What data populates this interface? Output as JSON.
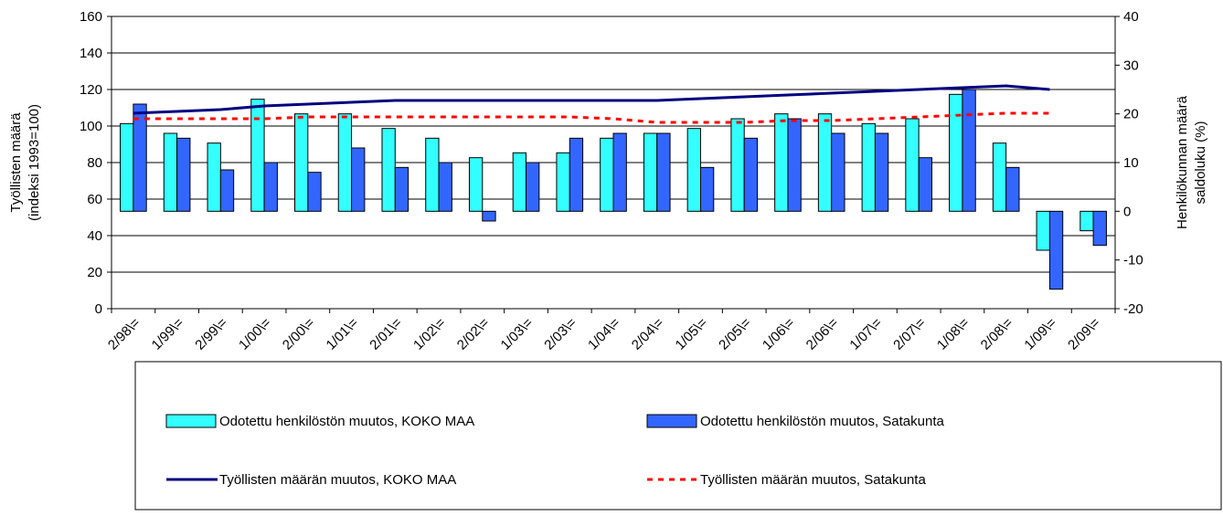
{
  "chart_data": {
    "type": "bar-line",
    "categories": [
      "2/98\\=",
      "1/99\\=",
      "2/99\\=",
      "1/00\\=",
      "2/00\\=",
      "1/01\\=",
      "2/01\\=",
      "1/02\\=",
      "2/02\\=",
      "1/03\\=",
      "2/03\\=",
      "1/04\\=",
      "2/04\\=",
      "1/05\\=",
      "2/05\\=",
      "1/06\\=",
      "2/06\\=",
      "1/07\\=",
      "2/07\\=",
      "1/08\\=",
      "2/08\\=",
      "1/09\\=",
      "2/09\\="
    ],
    "ylabel": [
      "Työllisten määrä",
      "(indeksi 1993=100)"
    ],
    "y2label": [
      "Henkilökunnan määrä",
      "saldoluku (%)"
    ],
    "ylim": [
      0,
      160
    ],
    "yticks": [
      0,
      20,
      40,
      60,
      80,
      100,
      120,
      140,
      160
    ],
    "y2lim": [
      -20,
      40
    ],
    "y2ticks": [
      -20,
      -10,
      0,
      10,
      20,
      30,
      40
    ],
    "grid": true,
    "series": [
      {
        "name": "Odotettu henkilöstön muutos, KOKO MAA",
        "kind": "bar",
        "axis": "y2",
        "color": "#33ffff",
        "values": [
          18,
          16,
          14,
          23,
          20,
          20,
          17,
          15,
          11,
          12,
          12,
          15,
          16,
          17,
          19,
          20,
          20,
          18,
          19,
          24,
          14,
          -8,
          -4
        ]
      },
      {
        "name": "Odotettu henkilöstön muutos, Satakunta",
        "kind": "bar",
        "axis": "y2",
        "color": "#3366ff",
        "values": [
          22,
          15,
          8.5,
          10,
          8,
          13,
          9,
          10,
          -2,
          10,
          15,
          16,
          16,
          9,
          15,
          19,
          16,
          16,
          11,
          25,
          9,
          -16,
          -7
        ]
      },
      {
        "name": "Työllisten määrän muutos, KOKO MAA",
        "kind": "line",
        "color": "#000080",
        "values": [
          107,
          108,
          109,
          111,
          112,
          113,
          114,
          114,
          114,
          114,
          114,
          114,
          114,
          115,
          116,
          117,
          118,
          119,
          120,
          121,
          122,
          120,
          null
        ]
      },
      {
        "name": "Työllisten määrän muutos, Satakunta",
        "kind": "line",
        "dashed": true,
        "color": "#ff0000",
        "values": [
          104,
          104,
          104,
          104,
          105,
          105,
          105,
          105,
          105,
          105,
          105,
          104,
          102,
          102,
          102,
          103,
          103,
          104,
          105,
          106,
          107,
          107,
          null
        ]
      }
    ]
  }
}
